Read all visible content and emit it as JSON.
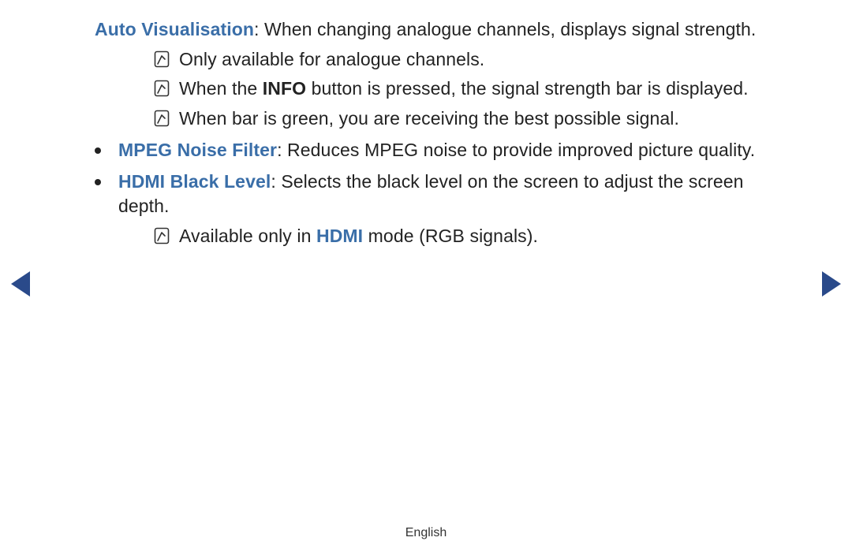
{
  "colors": {
    "blue_title": "#3a6ea8",
    "blue_inline": "#3a6ea8",
    "arrow_left": "#2a4a8a",
    "arrow_right": "#2a4a8a",
    "text": "#222222",
    "icon_stroke": "#333333"
  },
  "items": [
    {
      "title": "Auto Visualisation",
      "desc": ": When changing analogue channels, displays signal strength.",
      "show_bullet": false,
      "notes": [
        {
          "pre": "Only available for analogue channels."
        },
        {
          "pre": "When the ",
          "bold": "INFO",
          "post": " button is pressed, the signal strength bar is displayed."
        },
        {
          "pre": "When bar is green, you are receiving the best possible signal."
        }
      ]
    },
    {
      "title": "MPEG Noise Filter",
      "desc": ": Reduces MPEG noise to provide improved picture quality.",
      "show_bullet": true,
      "notes": []
    },
    {
      "title": "HDMI Black Level",
      "desc": ": Selects the black level on the screen to adjust the screen depth.",
      "show_bullet": true,
      "notes": [
        {
          "pre": "Available only in ",
          "blue": "HDMI",
          "post": " mode (RGB signals)."
        }
      ]
    }
  ],
  "footer": "English"
}
